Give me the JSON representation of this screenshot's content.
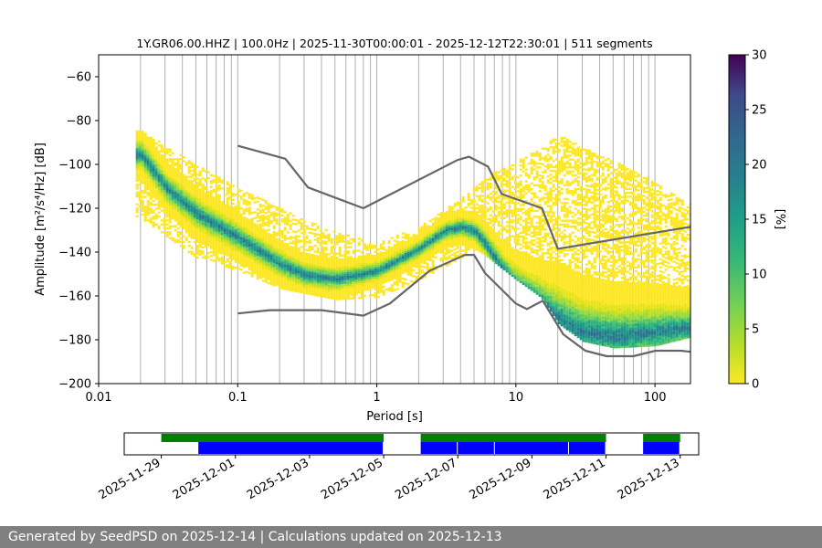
{
  "chart_data": [
    {
      "type": "heatmap",
      "title": "1Y.GR06.00.HHZ | 100.0Hz | 2025-11-30T00:00:01 - 2025-12-12T22:30:01 | 511 segments",
      "xlabel": "Period [s]",
      "ylabel": "Amplitude [m²/s⁴/Hz] [dB]",
      "x_scale": "log",
      "xlim": [
        0.01,
        180
      ],
      "ylim": [
        -200,
        -50
      ],
      "x_tick_labels": [
        "0.01",
        "0.1",
        "1",
        "10",
        "100"
      ],
      "y_ticks": [
        -60,
        -80,
        -100,
        -120,
        -140,
        -160,
        -180,
        -200
      ],
      "grid": "vertical log grid",
      "colorbar": {
        "label": "[%]",
        "min": 0,
        "max": 30,
        "ticks": [
          0,
          5,
          10,
          15,
          20,
          25,
          30
        ],
        "colormap": "viridis_r"
      },
      "noise_model_curves": [
        {
          "x": [
            0.1,
            0.22,
            0.32,
            0.8,
            3.8,
            4.6,
            6.3,
            7.9,
            15.4,
            20,
            180
          ],
          "y": [
            -91.5,
            -97.4,
            -110.5,
            -120,
            -98,
            -96.5,
            -101,
            -113.5,
            -120,
            -138.5,
            -128.5
          ]
        },
        {
          "x": [
            0.1,
            0.17,
            0.4,
            0.8,
            1.24,
            2.4,
            4.3,
            5.0,
            6.0,
            10.0,
            12.0,
            15.6,
            21.9,
            31.6,
            45,
            70,
            101,
            154,
            180
          ],
          "y": [
            -168,
            -166.5,
            -166.5,
            -169,
            -163.5,
            -148.5,
            -141.3,
            -141.3,
            -149.6,
            -163.5,
            -166,
            -162.2,
            -177.5,
            -185,
            -187.5,
            -187.5,
            -185,
            -185,
            -185.5
          ]
        }
      ],
      "psd_mode_curve": {
        "x": [
          0.02,
          0.03,
          0.05,
          0.1,
          0.2,
          0.3,
          0.5,
          1,
          2,
          3,
          4,
          5,
          6,
          8,
          10,
          15,
          20,
          30,
          50,
          100,
          180
        ],
        "y": [
          -95,
          -110,
          -122,
          -133,
          -145,
          -150,
          -152,
          -148,
          -138,
          -130,
          -128,
          -130,
          -136,
          -148,
          -155,
          -163,
          -170,
          -176,
          -178,
          -176,
          -174
        ]
      },
      "psd_upper_envelope": {
        "x": [
          0.02,
          0.05,
          0.1,
          0.3,
          0.5,
          1,
          2,
          4,
          6,
          10,
          15,
          20,
          30,
          50,
          100,
          180
        ],
        "y": [
          -84,
          -100,
          -110,
          -125,
          -130,
          -135,
          -128,
          -115,
          -105,
          -98,
          -92,
          -86,
          -92,
          -98,
          -108,
          -118
        ]
      },
      "psd_lower_envelope": {
        "x": [
          0.02,
          0.05,
          0.1,
          0.2,
          0.5,
          1,
          2,
          4,
          5,
          6,
          10,
          15,
          20,
          30,
          50,
          100,
          180
        ],
        "y": [
          -124,
          -142,
          -148,
          -156,
          -161,
          -160,
          -152,
          -142,
          -138,
          -141,
          -152,
          -160,
          -172,
          -180,
          -183,
          -182,
          -178
        ]
      }
    },
    {
      "type": "timeline",
      "x_tick_labels": [
        "2025-11-29",
        "2025-12-01",
        "2025-12-03",
        "2025-12-05",
        "2025-12-07",
        "2025-12-09",
        "2025-12-11",
        "2025-12-13"
      ],
      "xlim": [
        "2025-11-28T00:00",
        "2025-12-13T12:00"
      ],
      "available_data": [
        {
          "start": "2025-11-29T00:00",
          "end": "2025-12-05T00:00"
        },
        {
          "start": "2025-12-06T00:00",
          "end": "2025-12-11T00:00"
        },
        {
          "start": "2025-12-12T00:00",
          "end": "2025-12-13T00:00"
        }
      ],
      "used_segments": [
        {
          "start": "2025-11-30T00:00",
          "end": "2025-12-05T00:00"
        },
        {
          "start": "2025-12-06T00:00",
          "end": "2025-12-07T00:00"
        },
        {
          "start": "2025-12-07T00:00",
          "end": "2025-12-08T00:00"
        },
        {
          "start": "2025-12-08T00:00",
          "end": "2025-12-10T00:00"
        },
        {
          "start": "2025-12-10T00:00",
          "end": "2025-12-11T00:00"
        },
        {
          "start": "2025-12-12T00:00",
          "end": "2025-12-13T00:00"
        }
      ],
      "colors": {
        "available": "#008000",
        "used": "#0000ff"
      }
    }
  ],
  "footer": {
    "text": "Generated by SeedPSD on 2025-12-14 | Calculations updated on 2025-12-13"
  }
}
